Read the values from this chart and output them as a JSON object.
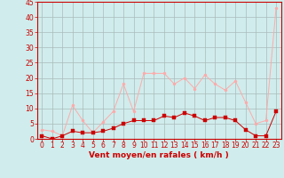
{
  "x": [
    0,
    1,
    2,
    3,
    4,
    5,
    6,
    7,
    8,
    9,
    10,
    11,
    12,
    13,
    14,
    15,
    16,
    17,
    18,
    19,
    20,
    21,
    22,
    23
  ],
  "y_avg": [
    1,
    0,
    1,
    2.5,
    2,
    2,
    2.5,
    3.5,
    5,
    6,
    6,
    6,
    7.5,
    7,
    8.5,
    7.5,
    6,
    7,
    7,
    6,
    3,
    1,
    1,
    9
  ],
  "y_gust": [
    3,
    2.5,
    1,
    11,
    6,
    2,
    5.5,
    9,
    18,
    9,
    21.5,
    21.5,
    21.5,
    18,
    20,
    16.5,
    21,
    18,
    16,
    19,
    12,
    5,
    6,
    43
  ],
  "line_color_avg": "#cc0000",
  "line_color_gust": "#ffaaaa",
  "bg_color": "#d0ecec",
  "grid_color": "#aabbbb",
  "xlabel": "Vent moyen/en rafales ( km/h )",
  "ylim": [
    0,
    45
  ],
  "yticks": [
    0,
    5,
    10,
    15,
    20,
    25,
    30,
    35,
    40,
    45
  ],
  "xticks": [
    0,
    1,
    2,
    3,
    4,
    5,
    6,
    7,
    8,
    9,
    10,
    11,
    12,
    13,
    14,
    15,
    16,
    17,
    18,
    19,
    20,
    21,
    22,
    23
  ],
  "tick_color": "#cc0000",
  "label_color": "#cc0000",
  "axis_color": "#cc0000",
  "spine_color": "#cc0000",
  "tick_fontsize": 5.5,
  "xlabel_fontsize": 6.5,
  "linewidth": 0.7,
  "markersize_avg": 2.2,
  "markersize_gust": 2.2
}
